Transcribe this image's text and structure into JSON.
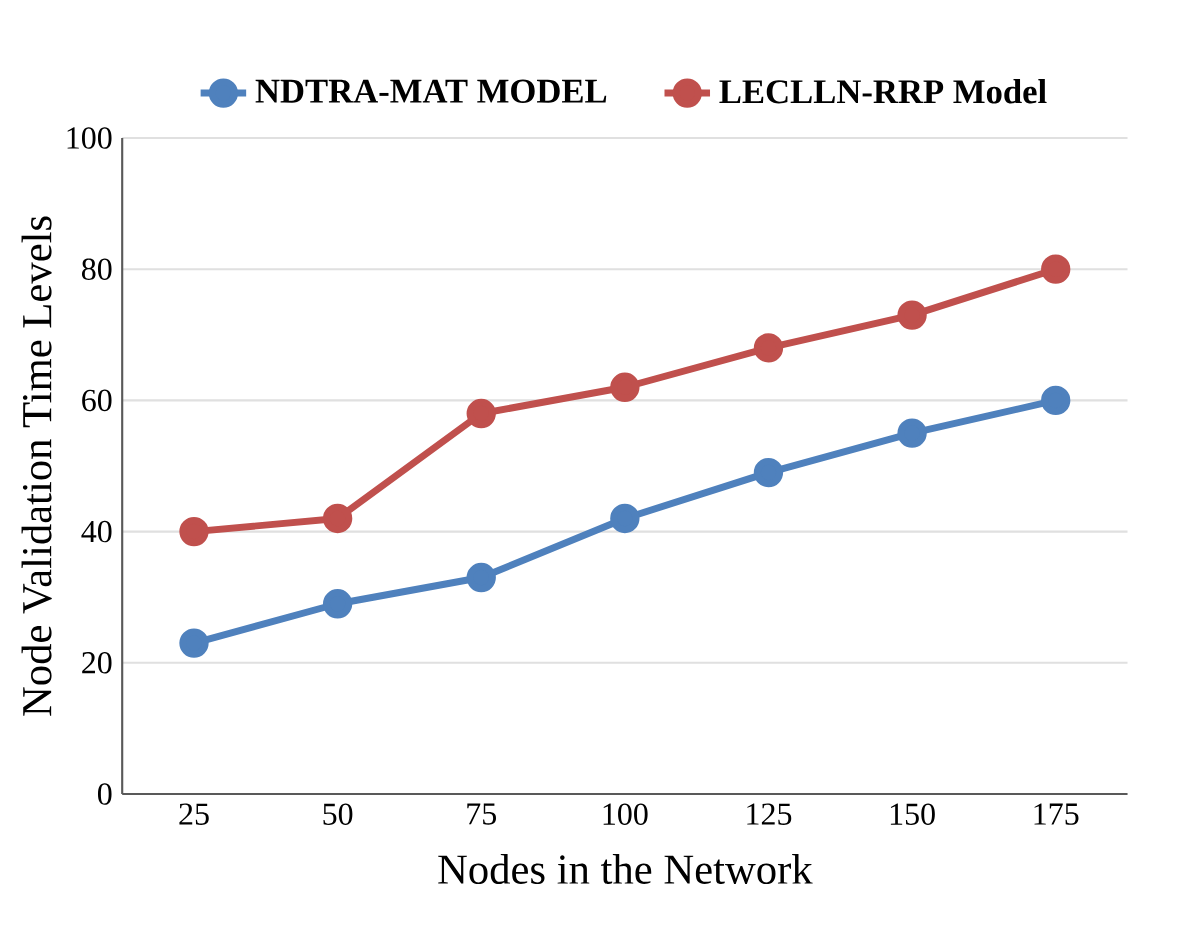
{
  "chart_data": {
    "type": "line",
    "xlabel": "Nodes in the Network",
    "ylabel": "Node Validation Time Levels",
    "categories": [
      "25",
      "50",
      "75",
      "100",
      "125",
      "150",
      "175"
    ],
    "series": [
      {
        "name": "NDTRA-MAT MODEL",
        "color": "#4f81bd",
        "values": [
          23,
          29,
          33,
          42,
          49,
          55,
          60
        ]
      },
      {
        "name": "LECLLN-RRP Model",
        "color": "#c0504d",
        "values": [
          40,
          42,
          58,
          62,
          68,
          73,
          80
        ]
      }
    ],
    "ylim": [
      0,
      100
    ],
    "yticks": [
      0,
      20,
      40,
      60,
      80,
      100
    ],
    "grid": "y",
    "legend": "top",
    "marker": "circle",
    "line_style": "solid"
  }
}
